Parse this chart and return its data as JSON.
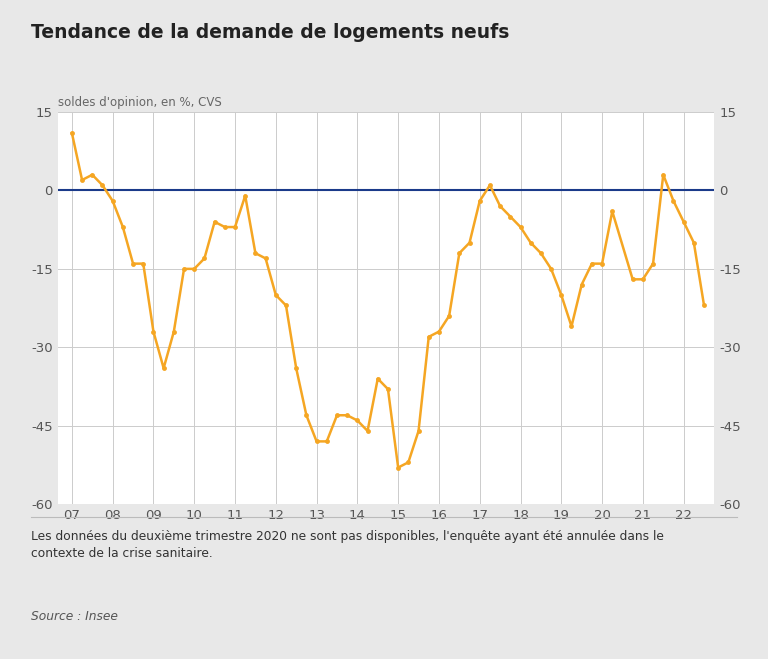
{
  "title": "Tendance de la demande de logements neufs",
  "ylabel_left": "soldes d'opinion, en %, CVS",
  "background_color": "#e8e8e8",
  "plot_bg_color": "#ffffff",
  "line_color": "#f5a623",
  "zero_line_color": "#1a3a8a",
  "grid_color": "#cccccc",
  "ylim": [
    -60,
    15
  ],
  "yticks": [
    -60,
    -45,
    -30,
    -15,
    0,
    15
  ],
  "footnote": "Les données du deuxième trimestre 2020 ne sont pas disponibles, l'enquête ayant été annulée dans le\ncontexte de la crise sanitaire.",
  "source": "Source : Insee",
  "x_tick_positions": [
    2007,
    2008,
    2009,
    2010,
    2011,
    2012,
    2013,
    2014,
    2015,
    2016,
    2017,
    2018,
    2019,
    2020,
    2021,
    2022
  ],
  "x_labels": [
    "07",
    "08",
    "09",
    "10",
    "11",
    "12",
    "13",
    "14",
    "15",
    "16",
    "17",
    "18",
    "19",
    "20",
    "21",
    "22"
  ],
  "data": [
    [
      2007.0,
      11
    ],
    [
      2007.25,
      2
    ],
    [
      2007.5,
      3
    ],
    [
      2007.75,
      1
    ],
    [
      2008.0,
      -2
    ],
    [
      2008.25,
      -7
    ],
    [
      2008.5,
      -14
    ],
    [
      2008.75,
      -14
    ],
    [
      2009.0,
      -27
    ],
    [
      2009.25,
      -34
    ],
    [
      2009.5,
      -27
    ],
    [
      2009.75,
      -15
    ],
    [
      2010.0,
      -15
    ],
    [
      2010.25,
      -13
    ],
    [
      2010.5,
      -6
    ],
    [
      2010.75,
      -7
    ],
    [
      2011.0,
      -7
    ],
    [
      2011.25,
      -1
    ],
    [
      2011.5,
      -12
    ],
    [
      2011.75,
      -13
    ],
    [
      2012.0,
      -20
    ],
    [
      2012.25,
      -22
    ],
    [
      2012.5,
      -34
    ],
    [
      2012.75,
      -43
    ],
    [
      2013.0,
      -48
    ],
    [
      2013.25,
      -48
    ],
    [
      2013.5,
      -43
    ],
    [
      2013.75,
      -43
    ],
    [
      2014.0,
      -44
    ],
    [
      2014.25,
      -46
    ],
    [
      2014.5,
      -36
    ],
    [
      2014.75,
      -38
    ],
    [
      2015.0,
      -53
    ],
    [
      2015.25,
      -52
    ],
    [
      2015.5,
      -46
    ],
    [
      2015.75,
      -28
    ],
    [
      2016.0,
      -27
    ],
    [
      2016.25,
      -24
    ],
    [
      2016.5,
      -12
    ],
    [
      2016.75,
      -10
    ],
    [
      2017.0,
      -2
    ],
    [
      2017.25,
      1
    ],
    [
      2017.5,
      -3
    ],
    [
      2017.75,
      -5
    ],
    [
      2018.0,
      -7
    ],
    [
      2018.25,
      -10
    ],
    [
      2018.5,
      -12
    ],
    [
      2018.75,
      -15
    ],
    [
      2019.0,
      -20
    ],
    [
      2019.25,
      -26
    ],
    [
      2019.5,
      -18
    ],
    [
      2019.75,
      -14
    ],
    [
      2020.0,
      -14
    ],
    [
      2020.25,
      -4
    ],
    [
      2020.75,
      -17
    ],
    [
      2021.0,
      -17
    ],
    [
      2021.25,
      -14
    ],
    [
      2021.5,
      3
    ],
    [
      2021.75,
      -2
    ],
    [
      2022.0,
      -6
    ],
    [
      2022.25,
      -10
    ],
    [
      2022.5,
      -22
    ]
  ]
}
